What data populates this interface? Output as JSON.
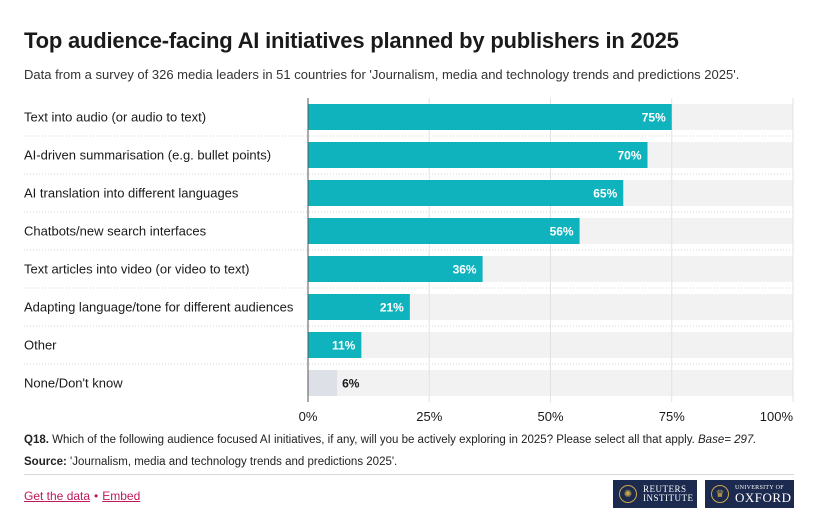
{
  "title": "Top audience-facing AI initiatives planned by publishers in 2025",
  "subtitle": "Data from a survey of 326 media leaders in 51 countries for 'Journalism, media and technology trends and predictions 2025'.",
  "note": {
    "label": "Q18.",
    "text": " Which of the following audience focused AI initiatives, if any, will you be actively exploring in 2025? Please select all that apply. ",
    "base": "Base= 297."
  },
  "source": {
    "label": "Source:",
    "text": " 'Journalism, media and technology trends and predictions 2025'."
  },
  "links": {
    "get_data": "Get the data",
    "separator": "•",
    "embed": "Embed"
  },
  "logos": {
    "reuters_line1": "REUTERS",
    "reuters_line2": "INSTITUTE",
    "oxford_line1": "UNIVERSITY OF",
    "oxford_line2": "OXFORD"
  },
  "colors": {
    "bar": "#0fb3bd",
    "bar_muted": "#dde0e6",
    "track": "#f2f2f2"
  },
  "chart_data": {
    "type": "bar",
    "orientation": "horizontal",
    "categories": [
      "Text into audio (or audio to text)",
      "AI-driven summarisation (e.g. bullet points)",
      "AI translation into different languages",
      "Chatbots/new search interfaces",
      "Text articles into video (or video to text)",
      "Adapting language/tone for different audiences",
      "Other",
      "None/Don't know"
    ],
    "values": [
      75,
      70,
      65,
      56,
      36,
      21,
      11,
      6
    ],
    "value_labels": [
      "75%",
      "70%",
      "65%",
      "56%",
      "36%",
      "21%",
      "11%",
      "6%"
    ],
    "xlim": [
      0,
      100
    ],
    "xticks": [
      0,
      25,
      50,
      75,
      100
    ],
    "xtick_labels": [
      "0%",
      "25%",
      "50%",
      "75%",
      "100%"
    ],
    "grid": true,
    "legend": "none"
  }
}
